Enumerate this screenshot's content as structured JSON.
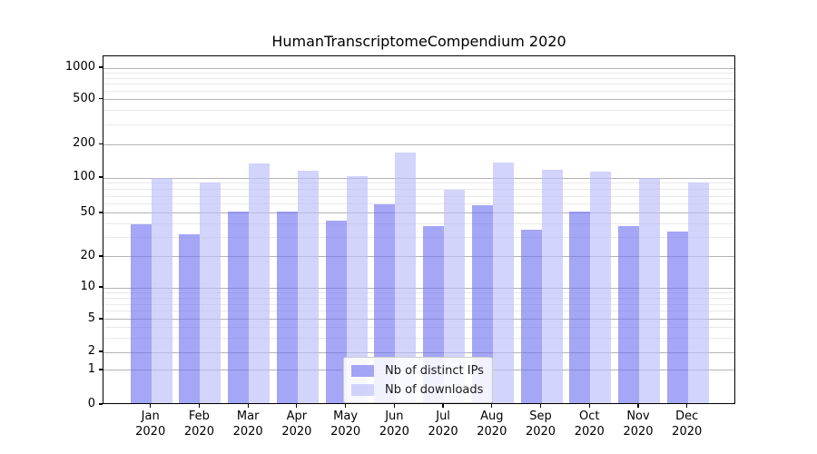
{
  "chart_data": {
    "type": "bar",
    "title": "HumanTranscriptomeCompendium 2020",
    "categories": [
      "Jan 2020",
      "Feb 2020",
      "Mar 2020",
      "Apr 2020",
      "May 2020",
      "Jun 2020",
      "Jul 2020",
      "Aug 2020",
      "Sep 2020",
      "Oct 2020",
      "Nov 2020",
      "Dec 2020"
    ],
    "series": [
      {
        "name": "Nb of distinct IPs",
        "key": "distinct-ips",
        "color": "rgba(112,114,240,0.63)",
        "values": [
          38,
          31,
          50,
          50,
          41,
          58,
          37,
          57,
          34,
          50,
          37,
          33
        ]
      },
      {
        "name": "Nb of downloads",
        "key": "downloads",
        "color": "rgba(186,189,250,0.66)",
        "values": [
          96,
          89,
          130,
          112,
          101,
          165,
          77,
          134,
          115,
          110,
          96,
          89
        ]
      }
    ],
    "y_axis": {
      "scale": "symlog",
      "ticks": [
        0,
        1,
        2,
        5,
        10,
        20,
        50,
        100,
        200,
        500,
        1000
      ],
      "minor_ticks": [
        3,
        4,
        6,
        7,
        8,
        9,
        30,
        40,
        60,
        70,
        80,
        90,
        300,
        400,
        600,
        700,
        800,
        900
      ],
      "range_top": 1300
    },
    "x_axis": {
      "tick_label_lines": 2
    },
    "legend": {
      "position": "lower center",
      "items": [
        "Nb of distinct IPs",
        "Nb of downloads"
      ]
    },
    "grid": true,
    "colors": {
      "bar_distinct_ips": "#a5a6f5",
      "bar_downloads": "#d5d7fb",
      "grid_major": "#b3b3b3",
      "grid_minor": "#e9e9e9",
      "spine": "#000000",
      "background": "#ffffff"
    }
  }
}
